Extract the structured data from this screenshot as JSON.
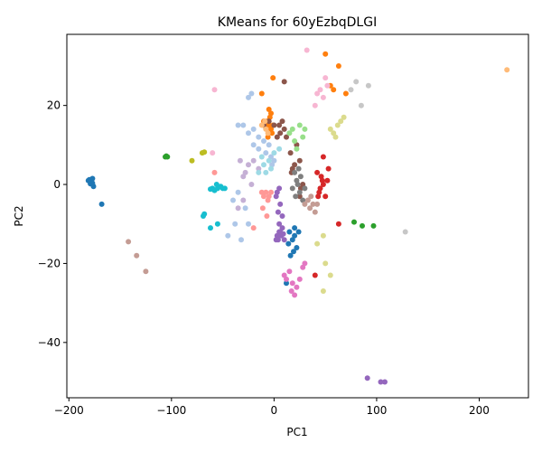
{
  "chart_data": {
    "type": "scatter",
    "title": "KMeans for 60yEzbqDLGI",
    "xlabel": "PC1",
    "ylabel": "PC2",
    "xlim": [
      -202,
      248
    ],
    "ylim": [
      -54,
      38
    ],
    "x_ticks": [
      -200,
      -100,
      0,
      100,
      200
    ],
    "y_ticks": [
      -40,
      -20,
      0,
      20
    ],
    "x_tick_labels": [
      "−200",
      "−100",
      "0",
      "100",
      "200"
    ],
    "y_tick_labels": [
      "−40",
      "−20",
      "0",
      "20"
    ],
    "grid": false,
    "clusters": [
      {
        "color": "#1f77b4",
        "points": [
          [
            -180,
            1.2
          ],
          [
            -178,
            0.8
          ],
          [
            -177,
            1.5
          ],
          [
            -179,
            0.2
          ],
          [
            -176,
            -0.5
          ],
          [
            -181,
            1
          ],
          [
            -177,
            0.3
          ],
          [
            -168,
            -5
          ],
          [
            15,
            -12
          ],
          [
            18,
            -14
          ],
          [
            20,
            -11
          ],
          [
            22,
            -16
          ],
          [
            16,
            -18
          ],
          [
            12,
            -25
          ],
          [
            20,
            -13
          ],
          [
            14,
            -15
          ],
          [
            19,
            -17
          ],
          [
            24,
            -12
          ]
        ]
      },
      {
        "color": "#ff7f0e",
        "points": [
          [
            -5,
            15
          ],
          [
            -3,
            14
          ],
          [
            -7,
            16
          ],
          [
            -2,
            13
          ],
          [
            -6,
            12
          ],
          [
            -4,
            17
          ],
          [
            -9,
            15
          ],
          [
            -1,
            15
          ],
          [
            -10,
            16
          ],
          [
            -3,
            18
          ],
          [
            -12,
            23
          ],
          [
            -1,
            27
          ],
          [
            50,
            33
          ],
          [
            63,
            30
          ],
          [
            55,
            25
          ],
          [
            58,
            24
          ],
          [
            70,
            23
          ],
          [
            -5,
            19
          ]
        ]
      },
      {
        "color": "#2ca02c",
        "points": [
          [
            -106,
            7
          ],
          [
            -105,
            7.2
          ],
          [
            -104,
            7
          ],
          [
            78,
            -9.5
          ],
          [
            86,
            -10.5
          ],
          [
            97,
            -10.5
          ]
        ]
      },
      {
        "color": "#d62728",
        "points": [
          [
            42,
            3
          ],
          [
            45,
            -1
          ],
          [
            48,
            0
          ],
          [
            46,
            2
          ],
          [
            44,
            -2
          ],
          [
            50,
            -3
          ],
          [
            47,
            1
          ],
          [
            43,
            -3
          ],
          [
            52,
            1
          ],
          [
            48,
            7
          ],
          [
            53,
            4
          ],
          [
            40,
            -23
          ],
          [
            63,
            -10
          ]
        ]
      },
      {
        "color": "#9467bd",
        "points": [
          [
            5,
            -12
          ],
          [
            7,
            -13
          ],
          [
            4,
            -14
          ],
          [
            8,
            -11
          ],
          [
            6,
            -12
          ],
          [
            9,
            -12.5
          ],
          [
            3,
            -13
          ],
          [
            5,
            -10
          ],
          [
            2,
            -14
          ],
          [
            10,
            -14
          ],
          [
            6,
            -5
          ],
          [
            8,
            -8
          ],
          [
            4,
            -7
          ],
          [
            3,
            -2
          ],
          [
            5,
            -1
          ],
          [
            2,
            -3
          ],
          [
            91,
            -49
          ],
          [
            104,
            -50
          ],
          [
            108,
            -50
          ]
        ]
      },
      {
        "color": "#8c564b",
        "points": [
          [
            -10,
            15
          ],
          [
            -5,
            16
          ],
          [
            0,
            15
          ],
          [
            5,
            15
          ],
          [
            10,
            14
          ],
          [
            8,
            16
          ],
          [
            12,
            12
          ],
          [
            6,
            13
          ],
          [
            3,
            12
          ],
          [
            16,
            8
          ],
          [
            18,
            4
          ],
          [
            20,
            5
          ],
          [
            17,
            3
          ],
          [
            22,
            10
          ],
          [
            25,
            6
          ],
          [
            26,
            -1
          ],
          [
            28,
            0
          ],
          [
            25,
            -3
          ],
          [
            10,
            26
          ]
        ]
      },
      {
        "color": "#e377c2",
        "points": [
          [
            10,
            -23
          ],
          [
            15,
            -22
          ],
          [
            18,
            -25
          ],
          [
            20,
            -28
          ],
          [
            25,
            -24
          ],
          [
            28,
            -21
          ],
          [
            22,
            -26
          ],
          [
            12,
            -24
          ],
          [
            17,
            -27
          ],
          [
            30,
            -20
          ]
        ]
      },
      {
        "color": "#7f7f7f",
        "points": [
          [
            20,
            3
          ],
          [
            22,
            1
          ],
          [
            25,
            -2
          ],
          [
            28,
            -4
          ],
          [
            30,
            -1
          ],
          [
            26,
            2
          ],
          [
            23,
            0
          ],
          [
            18,
            -1
          ],
          [
            21,
            -3
          ],
          [
            24,
            4
          ]
        ]
      },
      {
        "color": "#bcbd22",
        "points": [
          [
            -80,
            6
          ],
          [
            -70,
            8
          ],
          [
            -68,
            8.2
          ]
        ]
      },
      {
        "color": "#17becf",
        "points": [
          [
            -60,
            -1
          ],
          [
            -58,
            -1.5
          ],
          [
            -55,
            -1
          ],
          [
            -52,
            -0.5
          ],
          [
            -62,
            -1.2
          ],
          [
            -56,
            0
          ],
          [
            -48,
            -1
          ],
          [
            -68,
            -7.5
          ],
          [
            -69,
            -8
          ],
          [
            -62,
            -11
          ],
          [
            -55,
            -10
          ],
          [
            -50,
            -1
          ]
        ]
      },
      {
        "color": "#aec7e8",
        "points": [
          [
            -30,
            15
          ],
          [
            -25,
            13
          ],
          [
            -20,
            14
          ],
          [
            -15,
            12
          ],
          [
            -10,
            11
          ],
          [
            -5,
            10
          ],
          [
            -20,
            10
          ],
          [
            -15,
            9
          ],
          [
            -8,
            8
          ],
          [
            -3,
            7
          ],
          [
            0,
            6
          ],
          [
            -2,
            5
          ],
          [
            -35,
            15
          ],
          [
            -40,
            -4
          ],
          [
            -35,
            -2
          ],
          [
            -38,
            -10
          ],
          [
            -32,
            -14
          ],
          [
            -25,
            -10
          ],
          [
            -28,
            -6
          ],
          [
            -45,
            -13
          ],
          [
            -25,
            22
          ],
          [
            -22,
            23
          ]
        ]
      },
      {
        "color": "#ffbb78",
        "points": [
          [
            -12,
            15
          ],
          [
            -8,
            14
          ],
          [
            -6,
            13
          ],
          [
            -9,
            16
          ],
          [
            227,
            29
          ]
        ]
      },
      {
        "color": "#98df8a",
        "points": [
          [
            15,
            13
          ],
          [
            20,
            11
          ],
          [
            25,
            15
          ],
          [
            28,
            12
          ],
          [
            30,
            14
          ],
          [
            22,
            9
          ],
          [
            18,
            14
          ]
        ]
      },
      {
        "color": "#ff9896",
        "points": [
          [
            -10,
            -3
          ],
          [
            -8,
            -2
          ],
          [
            -5,
            -3
          ],
          [
            -12,
            -2
          ],
          [
            -6,
            -4
          ],
          [
            -3,
            -2
          ],
          [
            -11,
            -6
          ],
          [
            -7,
            -8
          ],
          [
            -20,
            -11
          ],
          [
            -58,
            3
          ]
        ]
      },
      {
        "color": "#c5b0d5",
        "points": [
          [
            -25,
            5
          ],
          [
            -28,
            3
          ],
          [
            -30,
            2
          ],
          [
            -20,
            6
          ],
          [
            -15,
            4
          ],
          [
            -33,
            6
          ],
          [
            -22,
            0
          ],
          [
            -35,
            -6
          ],
          [
            -30,
            -4
          ]
        ]
      },
      {
        "color": "#c49c94",
        "points": [
          [
            30,
            -5
          ],
          [
            35,
            -6
          ],
          [
            38,
            -5
          ],
          [
            40,
            -7
          ],
          [
            33,
            -4
          ],
          [
            36,
            -3
          ],
          [
            42,
            -5
          ],
          [
            -142,
            -14.5
          ],
          [
            -134,
            -18
          ],
          [
            -125,
            -22
          ]
        ]
      },
      {
        "color": "#f7b6d2",
        "points": [
          [
            40,
            20
          ],
          [
            45,
            24
          ],
          [
            50,
            27
          ],
          [
            48,
            22
          ],
          [
            42,
            23
          ],
          [
            52,
            25
          ],
          [
            32,
            34
          ],
          [
            -58,
            24
          ],
          [
            -60,
            8
          ]
        ]
      },
      {
        "color": "#c7c7c7",
        "points": [
          [
            75,
            24
          ],
          [
            80,
            26
          ],
          [
            85,
            20
          ],
          [
            92,
            25
          ],
          [
            128,
            -12
          ]
        ]
      },
      {
        "color": "#dbdb8d",
        "points": [
          [
            55,
            14
          ],
          [
            60,
            12
          ],
          [
            62,
            15
          ],
          [
            65,
            16
          ],
          [
            58,
            13
          ],
          [
            68,
            17
          ],
          [
            48,
            -27
          ],
          [
            50,
            -20
          ],
          [
            55,
            -23
          ],
          [
            42,
            -15
          ],
          [
            48,
            -13
          ]
        ]
      },
      {
        "color": "#9edae5",
        "points": [
          [
            -10,
            5
          ],
          [
            -5,
            6
          ],
          [
            0,
            8
          ],
          [
            -8,
            3
          ],
          [
            -12,
            7
          ],
          [
            -3,
            4
          ],
          [
            5,
            9
          ],
          [
            -15,
            3
          ]
        ]
      }
    ]
  }
}
